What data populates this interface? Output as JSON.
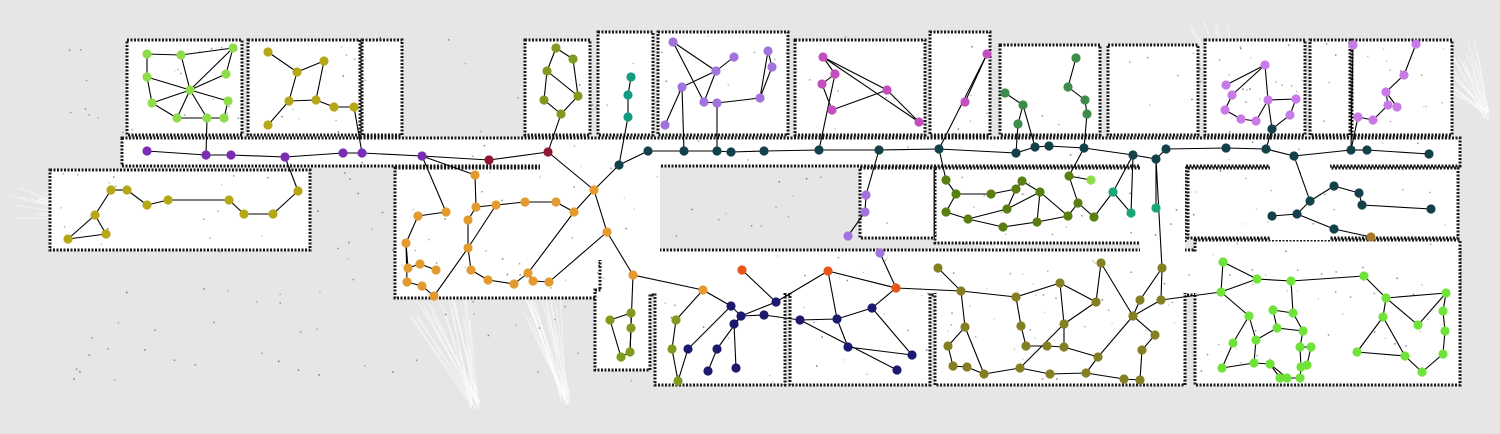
{
  "map": {
    "background_color": "#e6e6e6",
    "free_space_color": "#ffffff",
    "wall_color": "#1a1a1a",
    "edge_color": "#000000",
    "cluster_colors": {
      "lime": "#8fdc4a",
      "olive_yellow": "#b5a716",
      "purple": "#7b2cb5",
      "olive_green": "#7f9a1f",
      "dark_red": "#8e1634",
      "orange": "#e39a2f",
      "teal_dark": "#12414a",
      "teal": "#149a80",
      "violet": "#a273dc",
      "magenta": "#c34fbf",
      "green": "#3e8c4b",
      "grass": "#5a7f11",
      "mint": "#18a878",
      "navy": "#1b1a6e",
      "red_orange": "#e8541a",
      "olive": "#837f22",
      "bright_green": "#6fe33a",
      "pink_violet": "#c87ae8",
      "brown": "#a7772a"
    }
  }
}
